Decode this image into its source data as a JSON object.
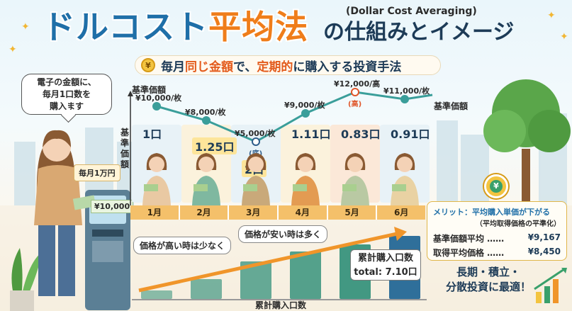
{
  "title": {
    "main_prefix": "ドルコスト",
    "main_accent": "平均法",
    "en": "(Dollar Cost Averaging)",
    "sub": "の仕組みとイメージ"
  },
  "banner": {
    "coin_symbol": "¥",
    "text_1": "毎月",
    "text_hl1": "同じ金額",
    "text_2": "で、",
    "text_hl2": "定期的",
    "text_3": "に購入する投資手法"
  },
  "bubble": {
    "line1": "電子の金額に、",
    "line2": "毎月1口数を",
    "line3": "購入ます"
  },
  "monthly_tag": "毎月1万円",
  "atm_note": "¥10,000",
  "y_axis_label": "基準価額",
  "y_axis_vertical": "基準価額",
  "line_end_label": "基準価額",
  "chart_data": {
    "type": "line",
    "categories": [
      "1月",
      "2月",
      "3月",
      "4月",
      "5月",
      "6月"
    ],
    "prices": [
      10000,
      8000,
      5000,
      9000,
      12000,
      11000
    ],
    "price_labels": [
      "¥10,000/枚",
      "¥8,000/枚",
      "¥5,000/枚",
      "¥9,000/枚",
      "¥12,000/高",
      "¥11,000/枚"
    ],
    "units_labels": [
      "1口",
      "1.25口",
      "2口",
      "1.11口",
      "0.83口",
      "0.91口"
    ],
    "high_marker": "(高)",
    "low_marker": "(底)",
    "cumulative_units": [
      1.0,
      2.25,
      4.25,
      5.36,
      6.19,
      7.1
    ],
    "cumulative_axis_label": "累計購入口数",
    "line_color": "#3a9e9a",
    "bar_color": "#2f8f78"
  },
  "callouts": {
    "high_price": "価格が高い時は少なく",
    "low_price": "価格が安い時は多く"
  },
  "total_box": {
    "line1": "累計購入口数",
    "line2": "total: 7.10口"
  },
  "merit": {
    "title": "メリット：平均購入単価が下がる",
    "subtitle": "（平均取得価格の平準化）",
    "rows": [
      {
        "label": "基準価額平均 ……",
        "value": "¥9,167"
      },
      {
        "label": "取得平均価格 ……",
        "value": "¥8,450"
      }
    ]
  },
  "slogan": {
    "line1": "長期・積立・",
    "line2": "分散投資に最適！"
  },
  "colors": {
    "title_blue": "#1f6fa8",
    "title_orange": "#ef7d1a",
    "accent_red": "#e35b1c"
  }
}
